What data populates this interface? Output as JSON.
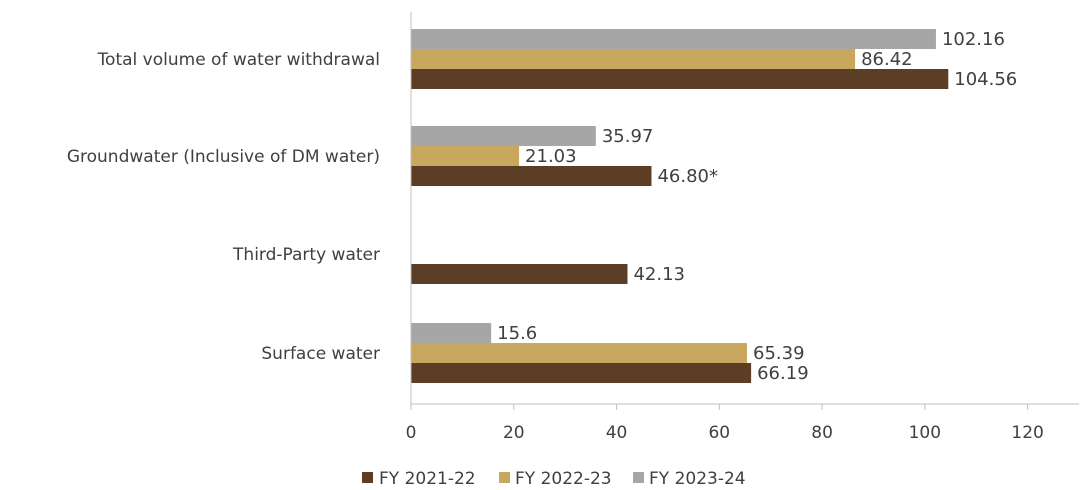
{
  "chart_data": {
    "type": "bar",
    "orientation": "horizontal",
    "categories": [
      "Total volume of water withdrawal",
      "Groundwater (Inclusive of DM water)",
      "Third-Party water",
      "Surface water"
    ],
    "series": [
      {
        "name": "FY 2021-22",
        "color": "#5c3d26",
        "values": [
          104.56,
          46.8,
          42.13,
          66.19
        ],
        "labels": [
          "104.56",
          "46.80*",
          "42.13",
          "66.19"
        ]
      },
      {
        "name": "FY 2022-23",
        "color": "#c8a85e",
        "values": [
          86.42,
          21.03,
          null,
          65.39
        ],
        "labels": [
          "86.42",
          "21.03",
          "",
          "65.39"
        ]
      },
      {
        "name": "FY 2023-24",
        "color": "#a6a6a6",
        "values": [
          102.16,
          35.97,
          null,
          15.6
        ],
        "labels": [
          "102.16",
          "35.97",
          "",
          "15.6"
        ]
      }
    ],
    "xlim": [
      0,
      130
    ],
    "xticks": [
      0,
      20,
      40,
      60,
      80,
      100,
      120
    ],
    "grid": false,
    "legend_position": "bottom",
    "title": "",
    "xlabel": "",
    "ylabel": ""
  }
}
